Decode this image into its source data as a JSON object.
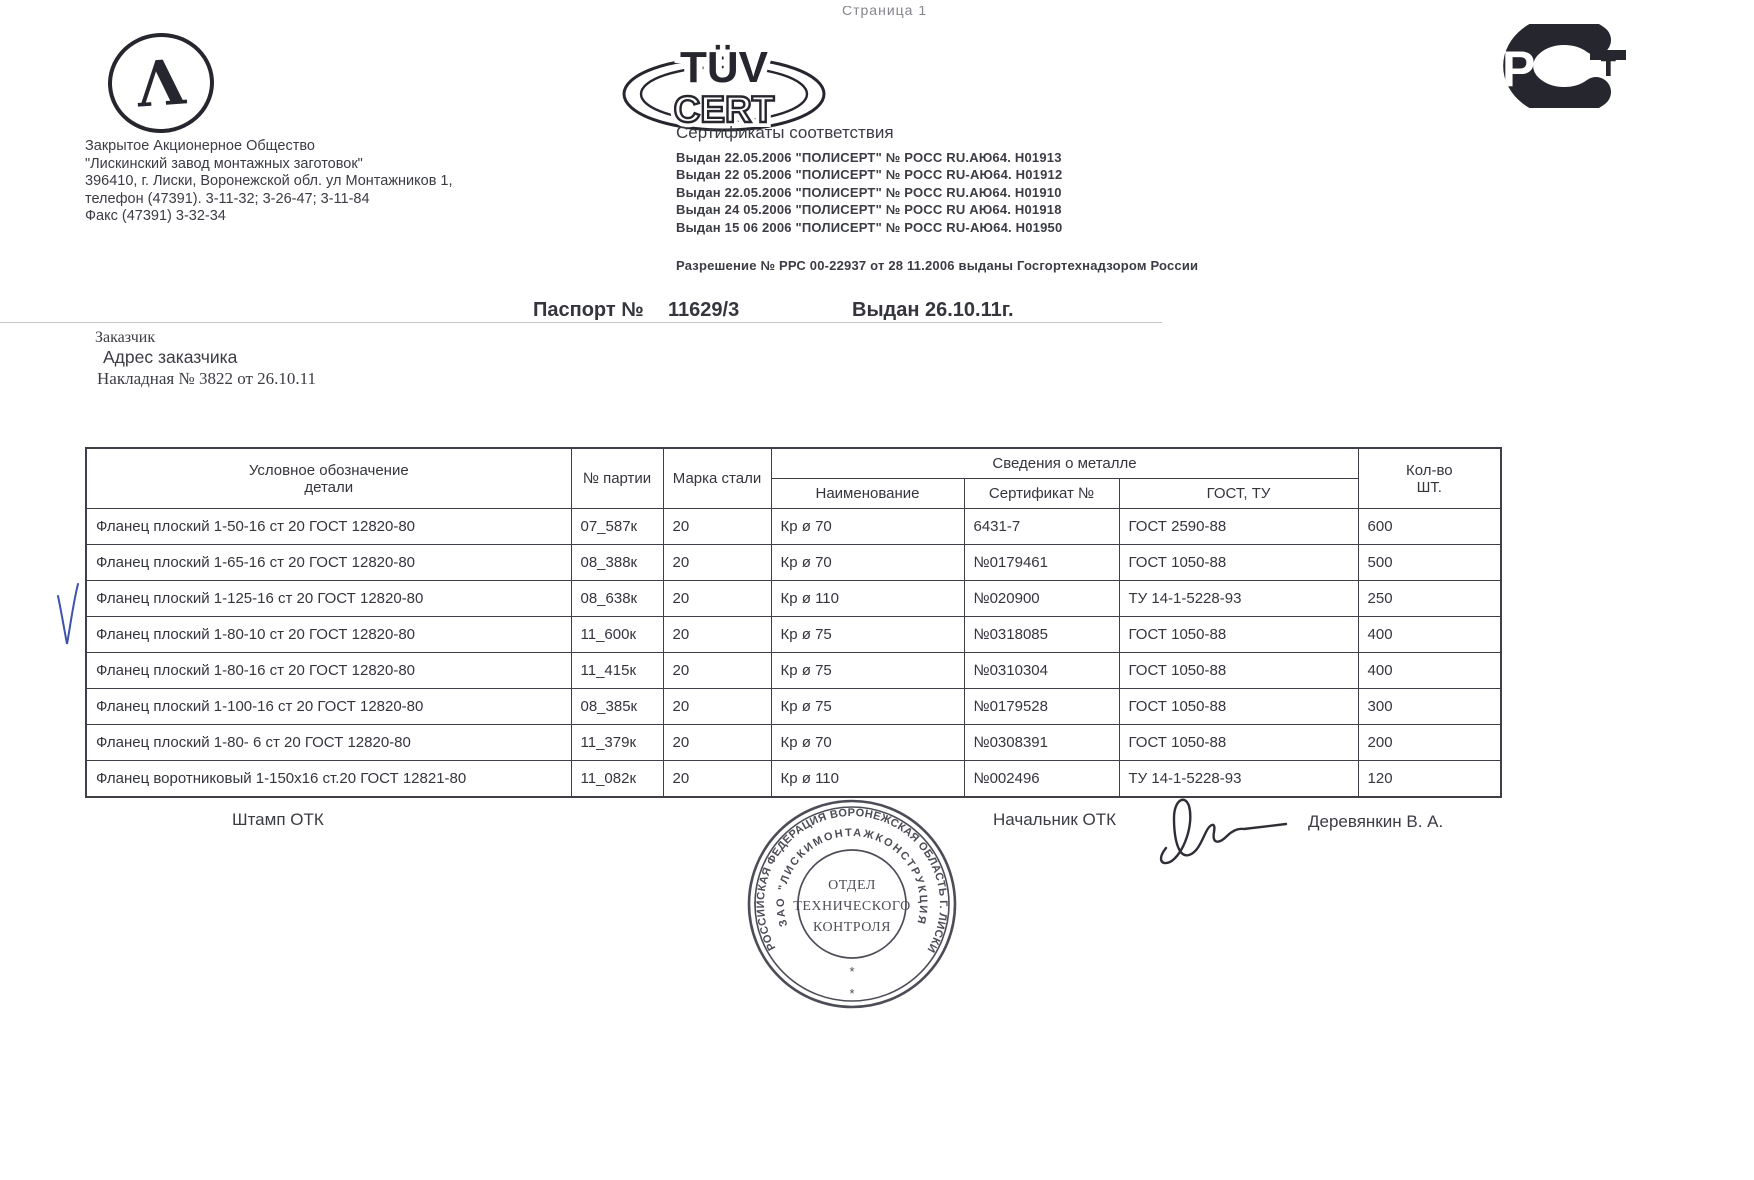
{
  "page": {
    "page_label": "Страница 1"
  },
  "logos": {
    "lambda_glyph": "Λ",
    "tuv_line1": "TÜV",
    "tuv_line2": "CERT",
    "rst_p": "Р",
    "rst_t": "т"
  },
  "company": {
    "lines": [
      "Закрытое Акционерное Общество",
      "\"Лискинский завод монтажных заготовок\"",
      "396410, г. Лиски, Воронежской обл. ул Монтажников 1,",
      "телефон (47391). 3-11-32; 3-26-47; 3-11-84",
      "Факс (47391) 3-32-34"
    ]
  },
  "certificates": {
    "heading": "Сертификаты соответствия",
    "lines": [
      "Выдан 22.05.2006 \"ПОЛИСЕРТ\"  № РОСС RU.АЮ64. Н01913",
      "Выдан 22 05.2006 \"ПОЛИСЕРТ\"  № РОСС RU-АЮ64. Н01912",
      "Выдан 22.05.2006 \"ПОЛИСЕРТ\"  № РОСС RU.АЮ64. Н01910",
      "Выдан 24 05.2006 \"ПОЛИСЕРТ\"  № РОСС RU АЮ64. Н01918",
      "Выдан 15 06 2006 \"ПОЛИСЕРТ\"  № РОСС RU-АЮ64. Н01950"
    ],
    "permission": "Разрешение № РРС 00-22937 от 28 11.2006 выданы Госгортехнадзором России"
  },
  "passport": {
    "label": "Паспорт №",
    "number": "11629/3",
    "issued": "Выдан 26.10.11г."
  },
  "customer": {
    "line1": "Заказчик",
    "line2": "Адрес заказчика",
    "line3": "Накладная № 3822 от 26.10.11"
  },
  "table": {
    "headers": {
      "detail_line1": "Условное обозначение",
      "detail_line2": "детали",
      "batch": "№ партии",
      "steel": "Марка стали",
      "metal_group": "Сведения о металле",
      "metal_name": "Наименование",
      "metal_cert": "Сертификат №",
      "metal_gost": "ГОСТ, ТУ",
      "qty_line1": "Кол-во",
      "qty_line2": "ШТ."
    },
    "row_keys": [
      "detail",
      "batch",
      "steel",
      "metal_name",
      "metal_cert",
      "metal_gost",
      "qty"
    ],
    "rows": [
      {
        "detail": "Фланец плоский  1-50-16 ст 20  ГОСТ 12820-80",
        "batch": "07_587к",
        "steel": "20",
        "metal_name": "Кр ø 70",
        "metal_cert": "6431-7",
        "metal_gost": "ГОСТ 2590-88",
        "qty": "600"
      },
      {
        "detail": "Фланец плоский  1-65-16 ст 20  ГОСТ 12820-80",
        "batch": "08_388к",
        "steel": "20",
        "metal_name": "Кр ø 70",
        "metal_cert": "№0179461",
        "metal_gost": "ГОСТ 1050-88",
        "qty": "500"
      },
      {
        "detail": "Фланец плоский  1-125-16 ст 20  ГОСТ 12820-80",
        "batch": "08_638к",
        "steel": "20",
        "metal_name": "Кр ø 110",
        "metal_cert": "№020900",
        "metal_gost": "ТУ 14-1-5228-93",
        "qty": "250"
      },
      {
        "detail": "Фланец плоский  1-80-10 ст 20  ГОСТ 12820-80",
        "batch": "11_600к",
        "steel": "20",
        "metal_name": "Кр ø 75",
        "metal_cert": "№0318085",
        "metal_gost": "ГОСТ 1050-88",
        "qty": "400"
      },
      {
        "detail": "Фланец плоский  1-80-16 ст 20  ГОСТ 12820-80",
        "batch": "11_415к",
        "steel": "20",
        "metal_name": "Кр ø 75",
        "metal_cert": "№0310304",
        "metal_gost": "ГОСТ 1050-88",
        "qty": "400"
      },
      {
        "detail": "Фланец плоский  1-100-16 ст 20  ГОСТ 12820-80",
        "batch": "08_385к",
        "steel": "20",
        "metal_name": "Кр ø 75",
        "metal_cert": "№0179528",
        "metal_gost": "ГОСТ 1050-88",
        "qty": "300"
      },
      {
        "detail": "Фланец плоский  1-80- 6 ст 20  ГОСТ 12820-80",
        "batch": "11_379к",
        "steel": "20",
        "metal_name": "Кр ø 70",
        "metal_cert": "№0308391",
        "metal_gost": "ГОСТ 1050-88",
        "qty": "200"
      },
      {
        "detail": "Фланец воротниковый  1-150х16  ст.20  ГОСТ 12821-80",
        "batch": "11_082к",
        "steel": "20",
        "metal_name": "Кр ø 110",
        "metal_cert": "№002496",
        "metal_gost": "ТУ 14-1-5228-93",
        "qty": "120"
      }
    ]
  },
  "footer": {
    "stamp_label": "Штамп ОТК",
    "chief_label": "Начальник ОТК",
    "chief_name": "Деревянкин В. А."
  },
  "stamp": {
    "ring_outer_text": "РОССИЙСКАЯ ФЕДЕРАЦИЯ   ВОРОНЕЖСКАЯ ОБЛАСТЬ   Г. ЛИСКИ",
    "ring_inner_text": "ЗАО \"ЛИСКИМОНТАЖКОНСТРУКЦИЯ\"",
    "center_line1": "ОТДЕЛ",
    "center_line2": "ТЕХНИЧЕСКОГО",
    "center_line3": "КОНТРОЛЯ",
    "star": "*"
  },
  "colors": {
    "ink": "#35363e",
    "logo_ink": "#26262e",
    "stamp_ink": "#3d3e48",
    "check_blue": "#3d54a8"
  }
}
